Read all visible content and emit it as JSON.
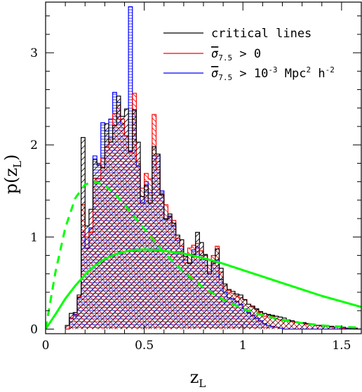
{
  "chart_data": {
    "type": "histogram",
    "xlabel": "z",
    "xlabel_sub": "L",
    "ylabel": "p(z",
    "ylabel_sub": "L",
    "ylabel_close": ")",
    "xlim": [
      0,
      1.6
    ],
    "ylim": [
      -0.05,
      3.55
    ],
    "bin_width": 0.02,
    "bin_start": 0.1,
    "xticks": [
      0,
      0.5,
      1,
      1.5
    ],
    "xtick_labels": [
      "0",
      "0.5",
      "1",
      "1.5"
    ],
    "yticks": [
      0,
      1,
      2,
      3
    ],
    "ytick_labels": [
      "0",
      "1",
      "2",
      "3"
    ],
    "legend_position": "top-right",
    "series": [
      {
        "name": "critical lines",
        "name_parts": {
          "main": "critical lines"
        },
        "color": "#000000",
        "values": [
          0.04,
          0.17,
          0.18,
          0.37,
          2.08,
          1.12,
          1.3,
          1.84,
          1.78,
          1.75,
          2.23,
          2.03,
          2.21,
          2.53,
          2.31,
          2.39,
          1.93,
          2.38,
          2.03,
          1.44,
          1.56,
          1.37,
          1.98,
          1.9,
          1.46,
          1.2,
          1.25,
          1.15,
          1.02,
          0.97,
          0.79,
          0.72,
          0.81,
          1.05,
          0.94,
          0.81,
          0.6,
          0.73,
          0.87,
          0.66,
          0.49,
          0.43,
          0.41,
          0.38,
          0.37,
          0.32,
          0.27,
          0.25,
          0.22,
          0.19,
          0.17,
          0.16,
          0.15,
          0.14,
          0.13,
          0.12,
          0.1,
          0.09,
          0.08,
          0.07,
          0.07,
          0.06,
          0.05,
          0.04,
          0.04,
          0.03,
          0.03,
          0.03,
          0.02,
          0.02,
          0.02,
          0.01,
          0.01,
          0.01,
          0.0
        ]
      },
      {
        "name": "σ̅7.5 > 0",
        "name_parts": {
          "symbol": "σ",
          "sub": "7.5",
          "rest": " > 0"
        },
        "color": "#ff0000",
        "values": [
          0.0,
          0.11,
          0.15,
          0.35,
          1.35,
          1.0,
          1.05,
          1.64,
          1.63,
          1.86,
          1.98,
          2.08,
          2.34,
          2.43,
          2.28,
          2.1,
          1.92,
          2.56,
          1.82,
          1.53,
          1.69,
          1.63,
          2.33,
          1.73,
          1.47,
          1.35,
          1.23,
          1.18,
          0.98,
          0.9,
          0.72,
          0.88,
          0.91,
          0.93,
          0.85,
          0.8,
          0.69,
          0.8,
          0.9,
          0.62,
          0.47,
          0.42,
          0.39,
          0.36,
          0.34,
          0.32,
          0.27,
          0.24,
          0.21,
          0.18,
          0.14,
          0.15,
          0.14,
          0.11,
          0.1,
          0.09,
          0.09,
          0.08,
          0.07,
          0.07,
          0.06,
          0.05,
          0.05,
          0.04,
          0.04,
          0.03,
          0.03,
          0.02,
          0.02,
          0.02,
          0.01,
          0.01,
          0.01,
          0.01,
          0.0
        ]
      },
      {
        "name": "σ̅7.5 > 10-3 Mpc2 h-2",
        "name_parts": {
          "symbol": "σ",
          "sub": "7.5",
          "rest": " > 10",
          "sup1": "-3",
          "mid": " Mpc",
          "sup2": "2",
          "mid2": " h",
          "sup3": "-2"
        },
        "color": "#0000ff",
        "values": [
          0.0,
          0.12,
          0.16,
          0.34,
          1.05,
          0.88,
          1.1,
          1.88,
          1.8,
          2.24,
          2.15,
          2.28,
          2.57,
          2.46,
          2.23,
          2.1,
          3.5,
          2.38,
          1.77,
          1.37,
          1.6,
          1.48,
          1.88,
          1.88,
          1.5,
          1.19,
          1.22,
          1.12,
          0.96,
          0.9,
          0.75,
          0.71,
          0.86,
          0.89,
          0.8,
          0.76,
          0.62,
          0.71,
          0.75,
          0.54,
          0.4,
          0.34,
          0.33,
          0.3,
          0.27,
          0.22,
          0.18,
          0.15,
          0.12,
          0.09,
          0.06,
          0.04,
          0.03,
          0.02,
          0.01,
          0.0,
          0.0,
          0.0,
          0.0,
          0.0,
          0.0,
          0.0,
          0.0,
          0.0,
          0.0,
          0.0,
          0.0,
          0.0,
          0.0,
          0.0,
          0.0,
          0.0,
          0.0,
          0.0,
          0.0
        ]
      }
    ],
    "curves": [
      {
        "style": "dashed",
        "color": "#00ff00",
        "x": [
          0.0,
          0.05,
          0.1,
          0.15,
          0.2,
          0.25,
          0.3,
          0.35,
          0.4,
          0.45,
          0.5,
          0.55,
          0.6,
          0.7,
          0.8,
          0.9,
          1.0,
          1.1,
          1.2,
          1.3,
          1.4,
          1.5,
          1.6
        ],
        "y": [
          0.0,
          0.62,
          1.1,
          1.42,
          1.57,
          1.6,
          1.56,
          1.47,
          1.35,
          1.22,
          1.09,
          0.96,
          0.83,
          0.62,
          0.45,
          0.32,
          0.22,
          0.15,
          0.1,
          0.065,
          0.04,
          0.025,
          0.015
        ]
      },
      {
        "style": "solid",
        "color": "#00ff00",
        "x": [
          0.0,
          0.05,
          0.1,
          0.15,
          0.2,
          0.25,
          0.3,
          0.35,
          0.4,
          0.45,
          0.5,
          0.55,
          0.6,
          0.7,
          0.8,
          0.9,
          1.0,
          1.1,
          1.2,
          1.3,
          1.4,
          1.5,
          1.6
        ],
        "y": [
          0.0,
          0.16,
          0.33,
          0.47,
          0.59,
          0.69,
          0.76,
          0.81,
          0.84,
          0.86,
          0.865,
          0.86,
          0.85,
          0.82,
          0.77,
          0.71,
          0.64,
          0.57,
          0.5,
          0.43,
          0.36,
          0.3,
          0.24
        ]
      }
    ]
  }
}
